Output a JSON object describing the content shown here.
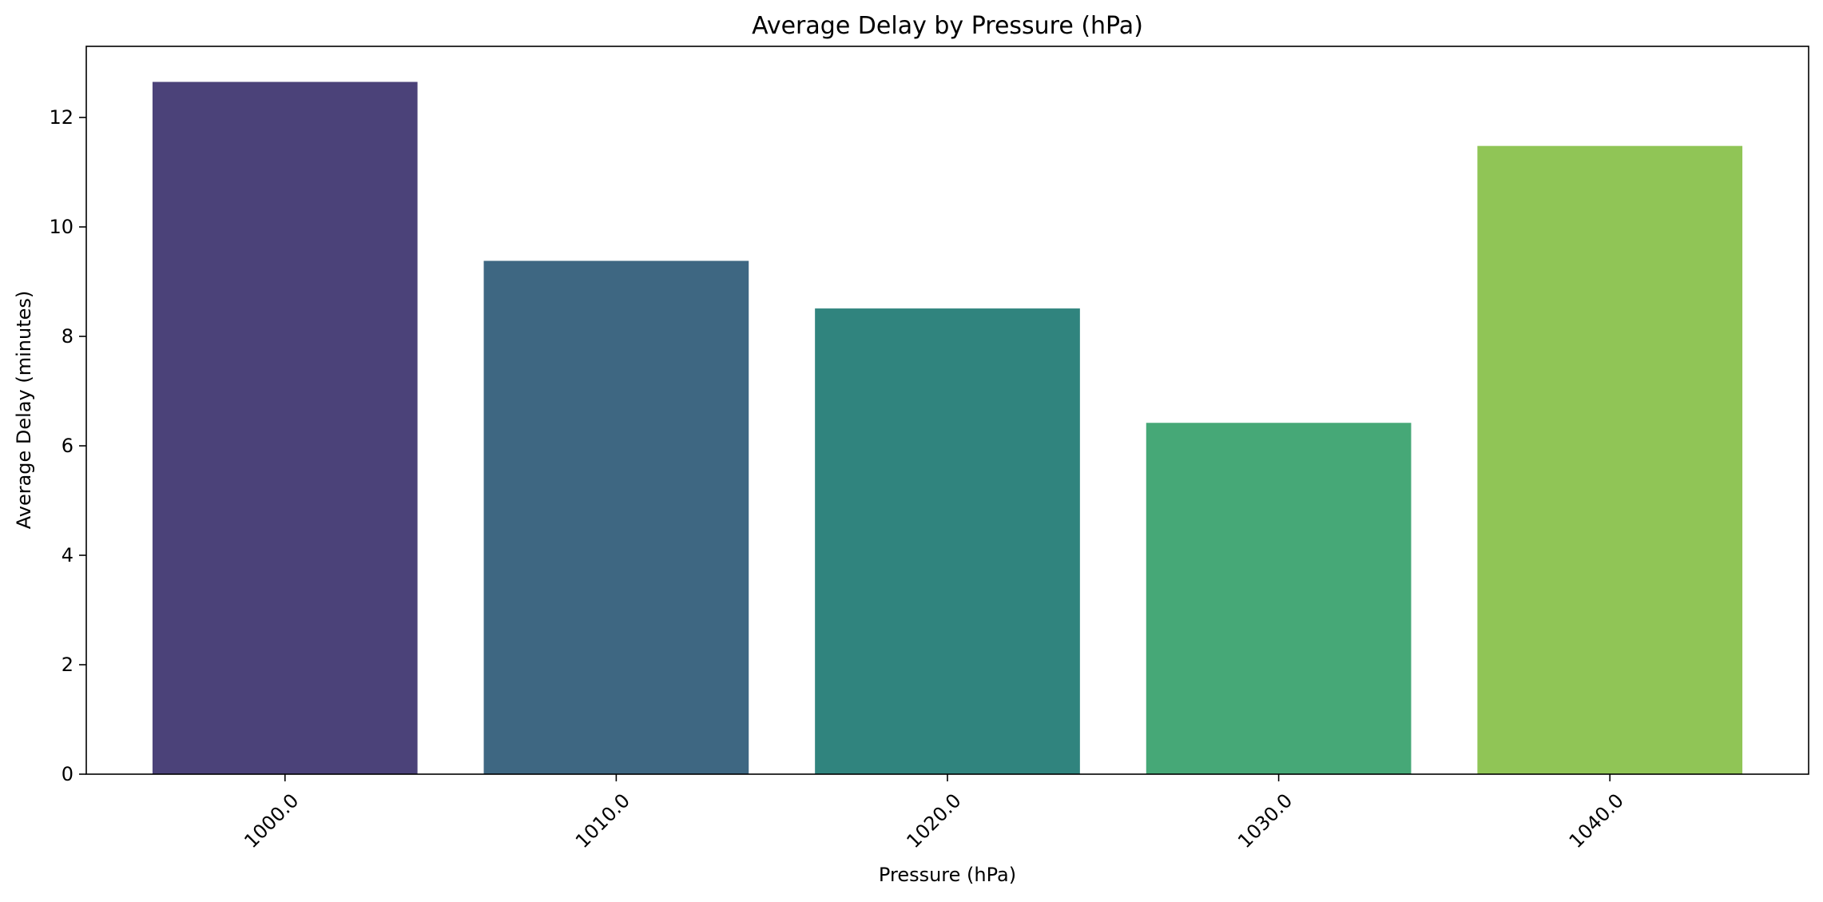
{
  "chart_data": {
    "type": "bar",
    "title": "Average Delay by Pressure (hPa)",
    "xlabel": "Pressure (hPa)",
    "ylabel": "Average Delay (minutes)",
    "categories": [
      "1000.0",
      "1010.0",
      "1020.0",
      "1030.0",
      "1040.0"
    ],
    "values": [
      12.65,
      9.38,
      8.51,
      6.42,
      11.48
    ],
    "colors": [
      "#4b4279",
      "#3e6782",
      "#30847e",
      "#46a877",
      "#90c556"
    ],
    "ylim": [
      0,
      13.3
    ],
    "yticks": [
      0,
      2,
      4,
      6,
      8,
      10,
      12
    ],
    "xtick_rotation": 45,
    "grid": false,
    "legend": "none"
  }
}
